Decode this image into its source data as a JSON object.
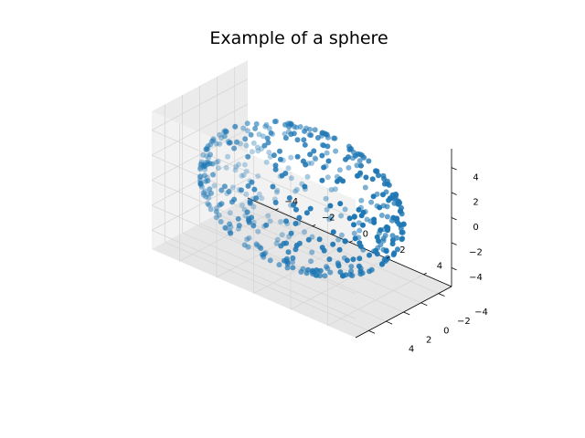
{
  "chart_data": {
    "type": "scatter",
    "title": "Example of a sphere",
    "xlabel": "",
    "ylabel": "",
    "zlabel": "",
    "radius": 5,
    "xlim": [
      -5.5,
      5.5
    ],
    "ylim": [
      -5.5,
      5.5
    ],
    "zlim": [
      -5.5,
      5.5
    ],
    "x_ticks": [
      -4,
      -2,
      0,
      2,
      4
    ],
    "y_ticks": [
      -4,
      -2,
      0,
      2,
      4
    ],
    "z_ticks": [
      -4,
      -2,
      0,
      2,
      4
    ],
    "x_tick_labels": [
      "−4",
      "−2",
      "0",
      "2",
      "4"
    ],
    "y_tick_labels": [
      "−4",
      "−2",
      "0",
      "2",
      "4"
    ],
    "z_tick_labels": [
      "−4",
      "−2",
      "0",
      "2",
      "4"
    ],
    "grid": true,
    "n_points": 500,
    "marker_color": "#1f77b4",
    "pane_color": "#f2f2f2"
  }
}
